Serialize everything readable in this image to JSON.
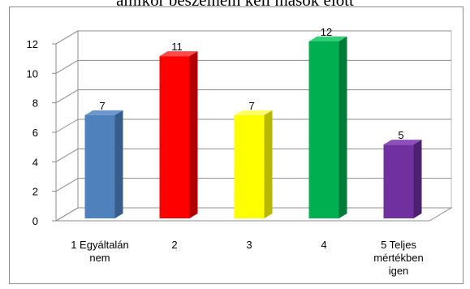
{
  "chart_data": {
    "type": "bar",
    "title": "amikor beszélnem kell mások előtt",
    "categories": [
      [
        "1 Egyáltalán",
        "nem"
      ],
      [
        "2"
      ],
      [
        "3"
      ],
      [
        "4"
      ],
      [
        "5 Teljes",
        "mértékben",
        "igen"
      ]
    ],
    "values": [
      7,
      11,
      7,
      12,
      5
    ],
    "data_labels": [
      "7",
      "11",
      "7",
      "12",
      "5"
    ],
    "y_ticks": [
      "0",
      "2",
      "4",
      "6",
      "8",
      "10",
      "12"
    ],
    "ylim": [
      0,
      12
    ],
    "grid": true,
    "legend": "none",
    "colors": [
      {
        "front": "#4F81BD",
        "side": "#385D8A",
        "top": "#6E97CB"
      },
      {
        "front": "#FF0000",
        "side": "#B20000",
        "top": "#FF4A4A"
      },
      {
        "front": "#FFFF00",
        "side": "#B8B800",
        "top": "#FFFF66"
      },
      {
        "front": "#00B050",
        "side": "#007A38",
        "top": "#2ED176"
      },
      {
        "front": "#7030A0",
        "side": "#4E2170",
        "top": "#8C4FBC"
      }
    ]
  }
}
